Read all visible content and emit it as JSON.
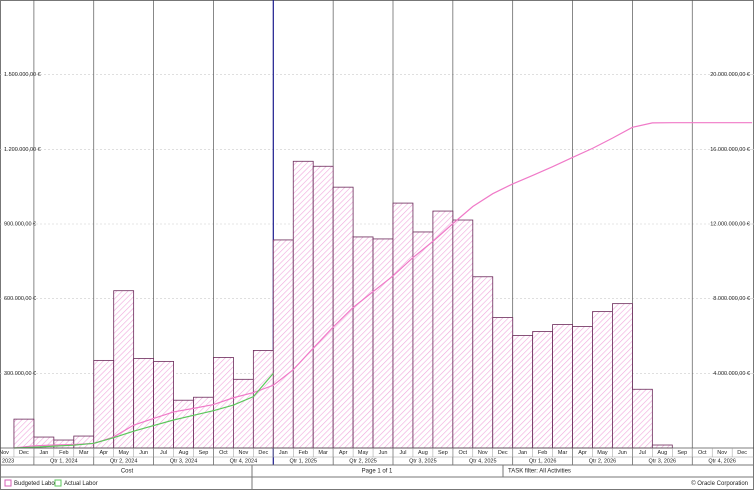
{
  "chart_data": {
    "type": "bar",
    "categories": [
      "Nov",
      "Dec",
      "Jan",
      "Feb",
      "Mar",
      "Apr",
      "May",
      "Jun",
      "Jul",
      "Aug",
      "Sep",
      "Oct",
      "Nov",
      "Dec",
      "Jan",
      "Feb",
      "Mar",
      "Apr",
      "May",
      "Jun",
      "Jul",
      "Aug",
      "Sep",
      "Oct",
      "Nov",
      "Dec",
      "Jan",
      "Feb",
      "Mar",
      "Apr",
      "May",
      "Jun",
      "Jul",
      "Aug",
      "Sep",
      "Oct",
      "Nov",
      "Dec"
    ],
    "quarters": [
      "2023",
      "Qtr 1, 2024",
      "Qtr 2, 2024",
      "Qtr 3, 2024",
      "Qtr 4, 2024",
      "Qtr 1, 2025",
      "Qtr 2, 2025",
      "Qtr 3, 2025",
      "Qtr 4, 2025",
      "Qtr 1, 2026",
      "Qtr 2, 2026",
      "Qtr 3, 2026",
      "Qtr 4, 2026"
    ],
    "series": [
      {
        "name": "Budgeted Labor",
        "type": "bar",
        "color": "#d65fb4",
        "values": [
          0,
          116000,
          44000,
          32000,
          48000,
          352000,
          632000,
          360000,
          348000,
          192000,
          204000,
          364000,
          276000,
          392000,
          836000,
          1152000,
          1132000,
          1048000,
          848000,
          840000,
          984000,
          868000,
          952000,
          916000,
          688000,
          524000,
          452000,
          468000,
          496000,
          488000,
          548000,
          580000,
          236000,
          12000,
          0,
          0,
          0,
          0
        ]
      },
      {
        "name": "Budgeted Labor",
        "type": "line",
        "axis": "y2",
        "color": "#f07ac8",
        "values": [
          0,
          116000,
          160000,
          192000,
          240000,
          592000,
          1224000,
          1584000,
          1932000,
          2124000,
          2328000,
          2692000,
          2968000,
          3360000,
          4196000,
          5348000,
          6480000,
          7528000,
          8376000,
          9216000,
          10200000,
          11068000,
          12020000,
          12936000,
          13624000,
          14148000,
          14600000,
          15068000,
          15564000,
          16052000,
          16600000,
          17180000,
          17416000,
          17428000,
          17428000,
          17428000,
          17428000,
          17428000
        ]
      },
      {
        "name": "Actual Labor",
        "type": "line",
        "axis": "y2",
        "color": "#5cc85c",
        "values": [
          0,
          40000,
          100000,
          150000,
          250000,
          550000,
          900000,
          1200000,
          1500000,
          1750000,
          2000000,
          2300000,
          2750000,
          4000000,
          null,
          null,
          null,
          null,
          null,
          null,
          null,
          null,
          null,
          null,
          null,
          null,
          null,
          null,
          null,
          null,
          null,
          null,
          null,
          null,
          null,
          null,
          null,
          null
        ]
      }
    ],
    "ylim": [
      0,
      1800000
    ],
    "yticks": [
      {
        "value": 300000,
        "label": "300.000,00 €"
      },
      {
        "value": 600000,
        "label": "600.000,00 €"
      },
      {
        "value": 900000,
        "label": "900.000,00 €"
      },
      {
        "value": 1200000,
        "label": "1.200.000,00 €"
      },
      {
        "value": 1500000,
        "label": "1.500.000,00 €"
      }
    ],
    "y2lim": [
      0,
      24000000
    ],
    "y2ticks": [
      {
        "value": 4000000,
        "label": "4.000.000,00 €"
      },
      {
        "value": 8000000,
        "label": "8.000.000,00 €"
      },
      {
        "value": 12000000,
        "label": "12.000.000,00 €"
      },
      {
        "value": 16000000,
        "label": "16.000.000,00 €"
      },
      {
        "value": 20000000,
        "label": "20.000.000,00 €"
      }
    ],
    "grid": true
  },
  "footer": {
    "subject": "Cost",
    "page": "Page 1 of 1",
    "filter": "TASK filter: All Activities",
    "copyright": "© Oracle Corporation"
  }
}
